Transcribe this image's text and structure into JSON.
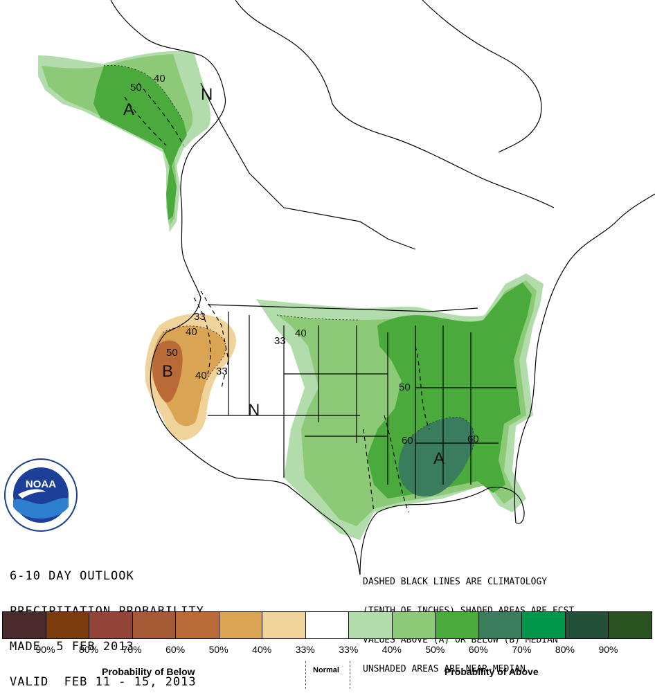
{
  "title": {
    "line1": "6-10 DAY OUTLOOK",
    "line2": "PRECIPITATION PROBABILITY",
    "line3": "MADE  5 FEB 2013",
    "line4": "VALID  FEB 11 - 15, 2013"
  },
  "note": {
    "line1": "DASHED BLACK LINES ARE CLIMATOLOGY",
    "line2": "(TENTH OF INCHES) SHADED AREAS ARE FCST",
    "line3": "VALUES ABOVE (A) OR BELOW (B) MEDIAN",
    "line4": "UNSHADED AREAS ARE NEAR-MEDIAN"
  },
  "map_labels": {
    "alaska_region": "A",
    "yukon_region": "N",
    "west_coast_region": "B",
    "interior_west_region": "N",
    "southeast_region": "A"
  },
  "contour_labels": [
    "40",
    "50",
    "33",
    "40",
    "50",
    "40",
    "33",
    "33",
    "40",
    "50",
    "60",
    "60"
  ],
  "legend": {
    "below_label": "Probability of Below",
    "normal_label": "Normal",
    "above_label": "Probability of Above",
    "percent_labels": [
      "90%",
      "80%",
      "70%",
      "60%",
      "50%",
      "40%",
      "33%",
      "33%",
      "40%",
      "50%",
      "60%",
      "70%",
      "80%",
      "90%"
    ],
    "colors": [
      "#4a2a2a",
      "#7a3c0c",
      "#924438",
      "#a65a34",
      "#b96a36",
      "#d9a552",
      "#f0d39b",
      "#ffffff",
      "#b2dcab",
      "#8dca78",
      "#4aaa3c",
      "#3a7d5c",
      "#00964a",
      "#24503a",
      "#2b5321"
    ]
  },
  "logo": {
    "text": "NOAA"
  }
}
